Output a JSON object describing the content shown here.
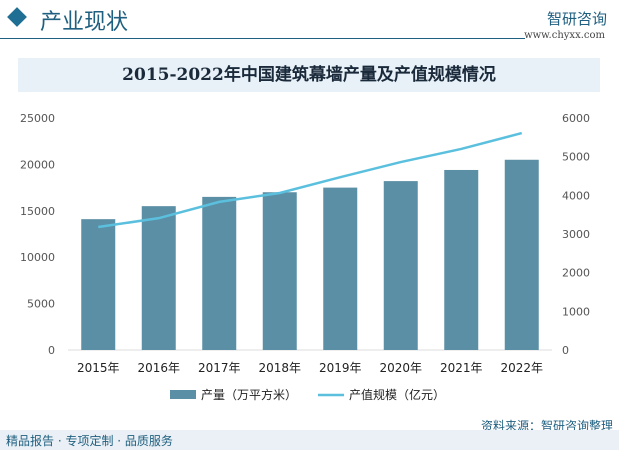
{
  "header": {
    "title": "产业现状",
    "brand": "智研咨询",
    "url": "www.chyxx.com"
  },
  "footer": {
    "left": "精品报告 · 专项定制 · 品质服务",
    "source": "资料来源：智研咨询整理"
  },
  "colors": {
    "bar": "#5b8fa5",
    "line": "#5bc0de"
  },
  "chart_data": {
    "type": "bar+line",
    "title": "2015-2022年中国建筑幕墙产量及产值规模情况",
    "categories": [
      "2015年",
      "2016年",
      "2017年",
      "2018年",
      "2019年",
      "2020年",
      "2021年",
      "2022年"
    ],
    "series": [
      {
        "name": "产量（万平方米）",
        "type": "bar",
        "axis": "left",
        "values": [
          14100,
          15500,
          16500,
          17000,
          17500,
          18200,
          19400,
          20500
        ]
      },
      {
        "name": "产值规模（亿元）",
        "type": "line",
        "axis": "right",
        "values": [
          3180,
          3410,
          3830,
          4060,
          4470,
          4860,
          5200,
          5610
        ]
      }
    ],
    "left_axis": {
      "range": [
        0,
        25000
      ],
      "ticks": [
        "0",
        "5000",
        "10000",
        "15000",
        "20000",
        "25000"
      ]
    },
    "right_axis": {
      "range": [
        0,
        6000
      ],
      "ticks": [
        "0",
        "1000",
        "2000",
        "3000",
        "4000",
        "5000",
        "6000"
      ]
    },
    "grid": false,
    "legend": "bottom"
  }
}
